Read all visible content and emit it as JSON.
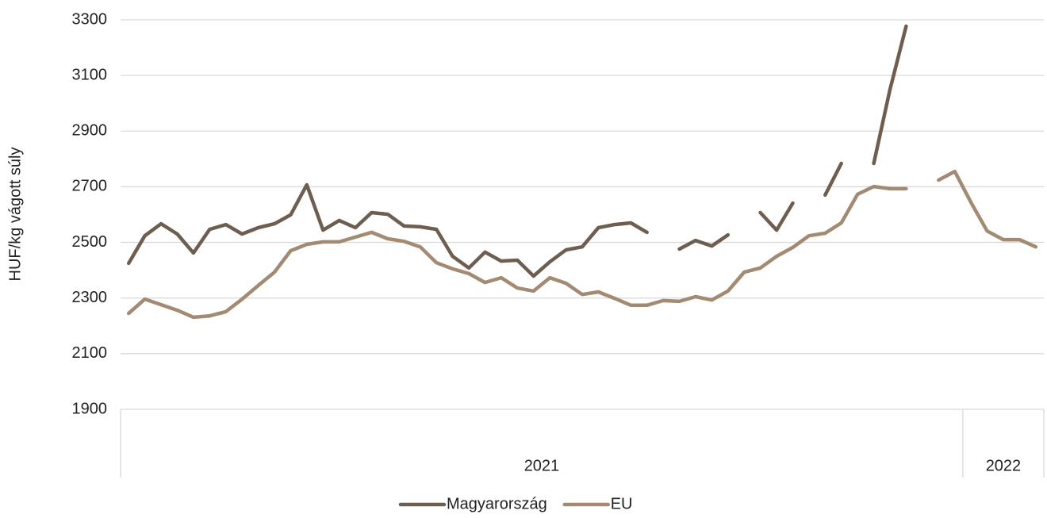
{
  "chart_data": {
    "type": "line",
    "y_label": "HUF/kg vágott súly",
    "ylim": [
      1900,
      3300
    ],
    "yticks": [
      1900,
      2100,
      2300,
      2500,
      2700,
      2900,
      3100,
      3300
    ],
    "grid": true,
    "legend": "bottom",
    "categories": [
      null,
      null,
      null,
      null,
      null,
      null,
      null,
      null,
      null,
      null,
      null,
      null,
      null,
      null,
      null,
      null,
      null,
      null,
      null,
      null,
      null,
      null,
      null,
      null,
      null,
      null,
      null,
      null,
      null,
      null,
      null,
      null,
      null,
      null,
      null,
      null,
      null,
      null,
      null,
      null,
      null,
      null,
      null,
      null,
      null,
      null,
      null,
      null,
      null,
      null,
      null,
      null,
      null,
      null,
      null,
      null,
      null
    ],
    "groups": [
      {
        "label": "2021",
        "count": 52
      },
      {
        "label": "2022",
        "count": 5
      }
    ],
    "series": [
      {
        "name": "Magyarország",
        "color": "#6e5e4f",
        "values": [
          2425,
          2524,
          2567,
          2530,
          2462,
          2547,
          2564,
          2530,
          2553,
          2567,
          2599,
          2707,
          2544,
          2579,
          2553,
          2607,
          2601,
          2559,
          2556,
          2547,
          2450,
          2408,
          2465,
          2433,
          2436,
          2379,
          2430,
          2473,
          2484,
          2553,
          2564,
          2570,
          2536,
          null,
          2476,
          2507,
          2487,
          2527,
          null,
          2607,
          2544,
          2641,
          null,
          2670,
          2784,
          null,
          2784,
          3049,
          3277,
          null,
          null,
          null,
          null,
          null,
          null,
          null,
          null
        ]
      },
      {
        "name": "EU",
        "color": "#a38a73",
        "values": [
          2245,
          2296,
          2276,
          2256,
          2231,
          2236,
          2251,
          2296,
          2345,
          2393,
          2470,
          2493,
          2502,
          2502,
          2519,
          2536,
          2513,
          2504,
          2484,
          2427,
          2405,
          2388,
          2356,
          2373,
          2336,
          2325,
          2373,
          2353,
          2313,
          2322,
          2299,
          2274,
          2274,
          2291,
          2288,
          2305,
          2293,
          2325,
          2393,
          2408,
          2450,
          2482,
          2524,
          2533,
          2570,
          2673,
          2701,
          2693,
          2693,
          null,
          2724,
          2755,
          2644,
          2541,
          2510,
          2510,
          2484
        ]
      }
    ]
  }
}
